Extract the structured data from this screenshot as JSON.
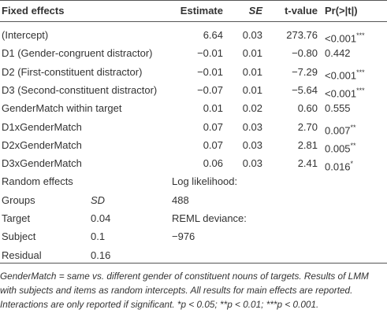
{
  "table": {
    "header": [
      "Fixed effects",
      "Estimate",
      "SE",
      "t-value",
      "Pr(>|t|)"
    ],
    "fixed_rows": [
      [
        "(Intercept)",
        "6.64",
        "0.03",
        "273.76",
        "<0.001",
        "***"
      ],
      [
        "D1 (Gender-congruent distractor)",
        "−0.01",
        "0.01",
        "−0.80",
        "0.442"
      ],
      [
        "D2 (First-constituent distractor)",
        "−0.01",
        "0.01",
        "−7.29",
        "<0.001",
        "***"
      ],
      [
        "D3 (Second-constituent distractor)",
        "−0.07",
        "0.01",
        "−5.64",
        "<0.001",
        "***"
      ],
      [
        "GenderMatch within target",
        "0.01",
        "0.02",
        "0.60",
        "0.555"
      ],
      [
        "D1xGenderMatch",
        "0.07",
        "0.03",
        "2.70",
        "0.007",
        "**"
      ],
      [
        "D2xGenderMatch",
        "0.07",
        "0.03",
        "2.81",
        "0.005",
        "**"
      ],
      [
        "D3xGenderMatch",
        "0.06",
        "0.03",
        "2.41",
        "0.016",
        "*"
      ]
    ],
    "random_title": "Random effects",
    "random_columns": [
      "Groups",
      "SD"
    ],
    "random_rows": [
      [
        "Target",
        "0.04"
      ],
      [
        "Subject",
        "0.1"
      ],
      [
        "Residual",
        "0.16"
      ]
    ],
    "fit": [
      "Log likelihood:",
      "488",
      "REML deviance:",
      "−976"
    ]
  },
  "footnote": "GenderMatch = same vs. different gender of constituent nouns of targets. Results of LMM with subjects and items as random intercepts. All results for main effects are reported. Interactions are only reported if significant. *p < 0.05; **p < 0.01; ***p < 0.001."
}
